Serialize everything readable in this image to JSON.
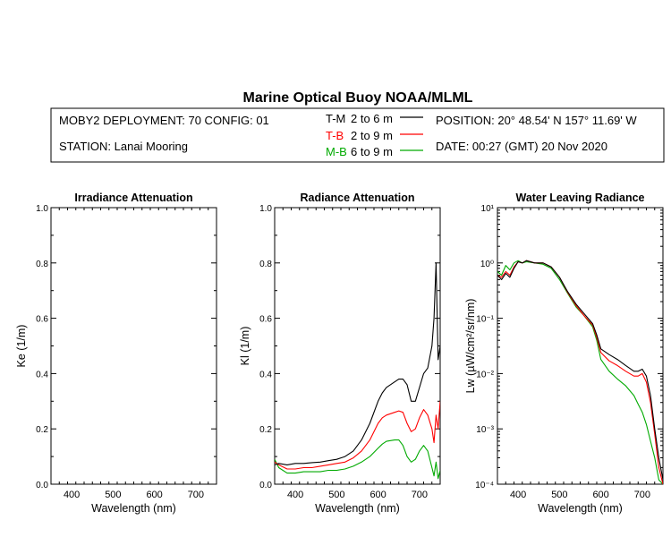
{
  "header": {
    "title": "Marine Optical Buoy NOAA/MLML",
    "deployment": "MOBY2 DEPLOYMENT: 70 CONFIG: 01",
    "station": "STATION: Lanai Mooring",
    "position": "POSITION: 20° 48.54' N   157° 11.69' W",
    "date": "DATE: 00:27 (GMT) 20 Nov 2020",
    "legend": [
      {
        "code": "T-M",
        "range": "2 to 6  m",
        "color": "#000000"
      },
      {
        "code": "T-B",
        "range": "2 to 9  m",
        "color": "#ff0000"
      },
      {
        "code": "M-B",
        "range": "6 to 9  m",
        "color": "#00aa00"
      }
    ]
  },
  "chart_data": [
    {
      "type": "line",
      "title": "Irradiance Attenuation",
      "xlabel": "Wavelength (nm)",
      "ylabel": "Ke  (1/m)",
      "xlim": [
        350,
        750
      ],
      "ylim": [
        0,
        1.0
      ],
      "xticks": [
        "400",
        "500",
        "600",
        "700"
      ],
      "yticks": [
        "0.0",
        "0.2",
        "0.4",
        "0.6",
        "0.8",
        "1.0"
      ],
      "series": []
    },
    {
      "type": "line",
      "title": "Radiance Attenuation",
      "xlabel": "Wavelength (nm)",
      "ylabel": "Kl  (1/m)",
      "xlim": [
        350,
        750
      ],
      "ylim": [
        0,
        1.0
      ],
      "xticks": [
        "400",
        "500",
        "600",
        "700"
      ],
      "yticks": [
        "0.0",
        "0.2",
        "0.4",
        "0.6",
        "0.8",
        "1.0"
      ],
      "series": [
        {
          "name": "T-M",
          "color": "#000000",
          "x": [
            350,
            360,
            380,
            400,
            420,
            440,
            460,
            480,
            500,
            520,
            540,
            560,
            580,
            600,
            610,
            620,
            640,
            650,
            660,
            670,
            680,
            690,
            700,
            710,
            720,
            730,
            735,
            740,
            745,
            750
          ],
          "y": [
            0.07,
            0.075,
            0.07,
            0.075,
            0.075,
            0.078,
            0.08,
            0.085,
            0.09,
            0.1,
            0.12,
            0.16,
            0.22,
            0.3,
            0.33,
            0.35,
            0.37,
            0.38,
            0.38,
            0.36,
            0.3,
            0.3,
            0.35,
            0.4,
            0.42,
            0.5,
            0.6,
            0.8,
            0.45,
            0.5
          ]
        },
        {
          "name": "T-B",
          "color": "#ff0000",
          "x": [
            350,
            360,
            380,
            400,
            420,
            440,
            460,
            480,
            500,
            520,
            540,
            560,
            580,
            600,
            610,
            620,
            640,
            650,
            660,
            670,
            680,
            690,
            700,
            710,
            720,
            730,
            735,
            740,
            745,
            750
          ],
          "y": [
            0.08,
            0.07,
            0.055,
            0.055,
            0.06,
            0.06,
            0.065,
            0.07,
            0.075,
            0.08,
            0.095,
            0.12,
            0.16,
            0.22,
            0.24,
            0.25,
            0.26,
            0.265,
            0.26,
            0.22,
            0.19,
            0.2,
            0.24,
            0.27,
            0.25,
            0.2,
            0.15,
            0.25,
            0.2,
            0.3
          ]
        },
        {
          "name": "M-B",
          "color": "#00aa00",
          "x": [
            350,
            360,
            380,
            400,
            420,
            440,
            460,
            480,
            500,
            520,
            540,
            560,
            580,
            600,
            610,
            620,
            640,
            650,
            660,
            670,
            680,
            690,
            700,
            710,
            720,
            730,
            735,
            740,
            745,
            750
          ],
          "y": [
            0.09,
            0.06,
            0.04,
            0.04,
            0.045,
            0.045,
            0.045,
            0.05,
            0.05,
            0.055,
            0.065,
            0.08,
            0.1,
            0.13,
            0.145,
            0.155,
            0.16,
            0.16,
            0.14,
            0.1,
            0.08,
            0.09,
            0.12,
            0.14,
            0.12,
            0.06,
            0.03,
            0.08,
            0.02,
            0.05
          ]
        }
      ]
    },
    {
      "type": "line",
      "title": "Water Leaving Radiance",
      "xlabel": "Wavelength (nm)",
      "ylabel": "Lw  (µW/cm²/sr/nm)",
      "xlim": [
        350,
        750
      ],
      "ylim": [
        0.0001,
        10
      ],
      "yscale": "log",
      "xticks": [
        "400",
        "500",
        "600",
        "700"
      ],
      "yticks": [
        "10⁻⁴",
        "10⁻³",
        "10⁻²",
        "10⁻¹",
        "10⁰",
        "10¹"
      ],
      "series": [
        {
          "name": "T-M",
          "color": "#000000",
          "x": [
            350,
            360,
            370,
            380,
            390,
            400,
            410,
            420,
            440,
            460,
            480,
            500,
            520,
            540,
            560,
            580,
            590,
            600,
            620,
            640,
            660,
            680,
            690,
            700,
            710,
            720,
            730,
            740,
            750
          ],
          "y": [
            0.6,
            0.5,
            0.65,
            0.55,
            0.8,
            1.05,
            1.0,
            1.1,
            1.0,
            1.0,
            0.85,
            0.55,
            0.3,
            0.18,
            0.12,
            0.08,
            0.05,
            0.028,
            0.022,
            0.018,
            0.014,
            0.011,
            0.011,
            0.012,
            0.009,
            0.004,
            0.001,
            0.0003,
            0.00012
          ]
        },
        {
          "name": "T-B",
          "color": "#ff0000",
          "x": [
            350,
            360,
            370,
            380,
            390,
            400,
            410,
            420,
            440,
            460,
            480,
            500,
            520,
            540,
            560,
            580,
            590,
            600,
            620,
            640,
            660,
            680,
            690,
            700,
            710,
            720,
            730,
            740,
            750
          ],
          "y": [
            0.6,
            0.55,
            0.7,
            0.6,
            0.85,
            1.05,
            1.0,
            1.1,
            1.0,
            1.0,
            0.85,
            0.55,
            0.29,
            0.17,
            0.11,
            0.075,
            0.045,
            0.024,
            0.017,
            0.014,
            0.011,
            0.009,
            0.009,
            0.01,
            0.007,
            0.003,
            0.0008,
            0.0002,
            0.0001
          ]
        },
        {
          "name": "M-B",
          "color": "#00aa00",
          "x": [
            350,
            360,
            370,
            380,
            390,
            400,
            410,
            420,
            440,
            460,
            480,
            500,
            520,
            540,
            560,
            580,
            590,
            600,
            620,
            640,
            660,
            680,
            690,
            700,
            710,
            720,
            730,
            740,
            750
          ],
          "y": [
            0.7,
            0.6,
            0.9,
            0.75,
            1.0,
            1.1,
            1.0,
            1.05,
            1.0,
            0.95,
            0.8,
            0.5,
            0.28,
            0.16,
            0.11,
            0.07,
            0.04,
            0.018,
            0.011,
            0.008,
            0.006,
            0.004,
            0.0028,
            0.002,
            0.0012,
            0.0006,
            0.0003,
            0.00012,
            0.0001
          ]
        }
      ]
    }
  ]
}
